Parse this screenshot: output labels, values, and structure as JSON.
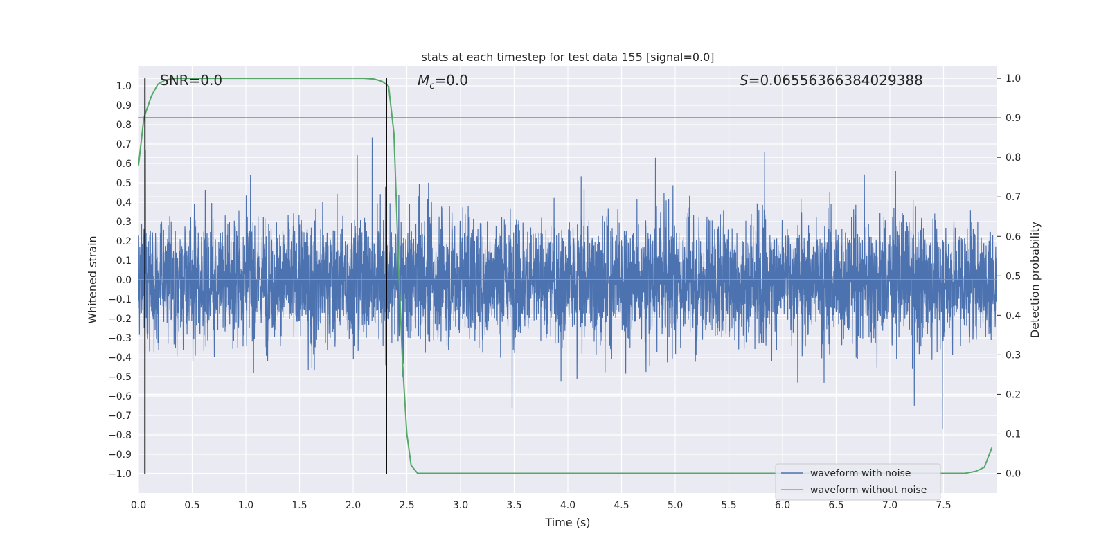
{
  "chart_data": {
    "type": "line",
    "title": "stats at each timestep for test data 155 [signal=0.0]",
    "xlabel": "Time (s)",
    "ylabel": "Whitened strain",
    "y2label": "Detection probability",
    "xlim": [
      0.0,
      8.0
    ],
    "ylim": [
      -1.1,
      1.1
    ],
    "y2lim": [
      -0.05,
      1.03
    ],
    "xticks": [
      "0.0",
      "0.5",
      "1.0",
      "1.5",
      "2.0",
      "2.5",
      "3.0",
      "3.5",
      "4.0",
      "4.5",
      "5.0",
      "5.5",
      "6.0",
      "6.5",
      "7.0",
      "7.5"
    ],
    "yticks": [
      "1.0",
      "0.9",
      "0.8",
      "0.7",
      "0.6",
      "0.5",
      "0.4",
      "0.3",
      "0.2",
      "0.1",
      "0.0",
      "-0.1",
      "-0.2",
      "-0.3",
      "-0.4",
      "-0.5",
      "-0.6",
      "-0.7",
      "-0.8",
      "-0.9",
      "-1.0"
    ],
    "y2ticks": [
      "0.0",
      "0.1",
      "0.2",
      "0.3",
      "0.4",
      "0.5",
      "0.6",
      "0.7",
      "0.8",
      "0.9",
      "1.0"
    ],
    "annotations": {
      "snr": "SNR=0.0",
      "mc_symbol": "M",
      "mc_sub": "c",
      "mc_value": "=0.0",
      "s_symbol": "S",
      "s_value": "=0.06556366384029388"
    },
    "threshold": {
      "value": 0.9,
      "axis": "right",
      "color": "#c44e52"
    },
    "vlines": [
      0.06,
      2.31
    ],
    "series": [
      {
        "name": "waveform with noise",
        "color": "#4c72b0",
        "axis": "left",
        "description": "dense noise, amplitude mostly within about ±0.35 with spikes up to about ±0.95",
        "noise_band": [
          -0.35,
          0.35
        ],
        "peak_range": [
          -1.0,
          0.93
        ]
      },
      {
        "name": "waveform without noise",
        "color": "#dd8452",
        "axis": "left",
        "x": [
          0.0,
          8.0
        ],
        "y": [
          0.0,
          0.0
        ]
      },
      {
        "name": "",
        "color": "#55a868",
        "axis": "right",
        "x": [
          0.0,
          0.05,
          0.12,
          0.18,
          0.25,
          0.35,
          0.5,
          1.0,
          1.5,
          2.0,
          2.1,
          2.2,
          2.27,
          2.33,
          2.38,
          2.42,
          2.46,
          2.5,
          2.54,
          2.6,
          3.0,
          4.0,
          5.0,
          6.0,
          7.0,
          7.7,
          7.8,
          7.88,
          7.95
        ],
        "y": [
          0.78,
          0.9,
          0.955,
          0.985,
          0.996,
          1.0,
          1.0,
          1.0,
          1.0,
          1.0,
          1.0,
          0.998,
          0.992,
          0.98,
          0.86,
          0.55,
          0.28,
          0.1,
          0.02,
          0.0,
          0.0,
          0.0,
          0.0,
          0.0,
          0.0,
          0.0,
          0.005,
          0.015,
          0.065
        ]
      }
    ],
    "legend": {
      "position": "lower-right",
      "entries": [
        "waveform with noise",
        "waveform without noise"
      ]
    },
    "grid": true
  }
}
